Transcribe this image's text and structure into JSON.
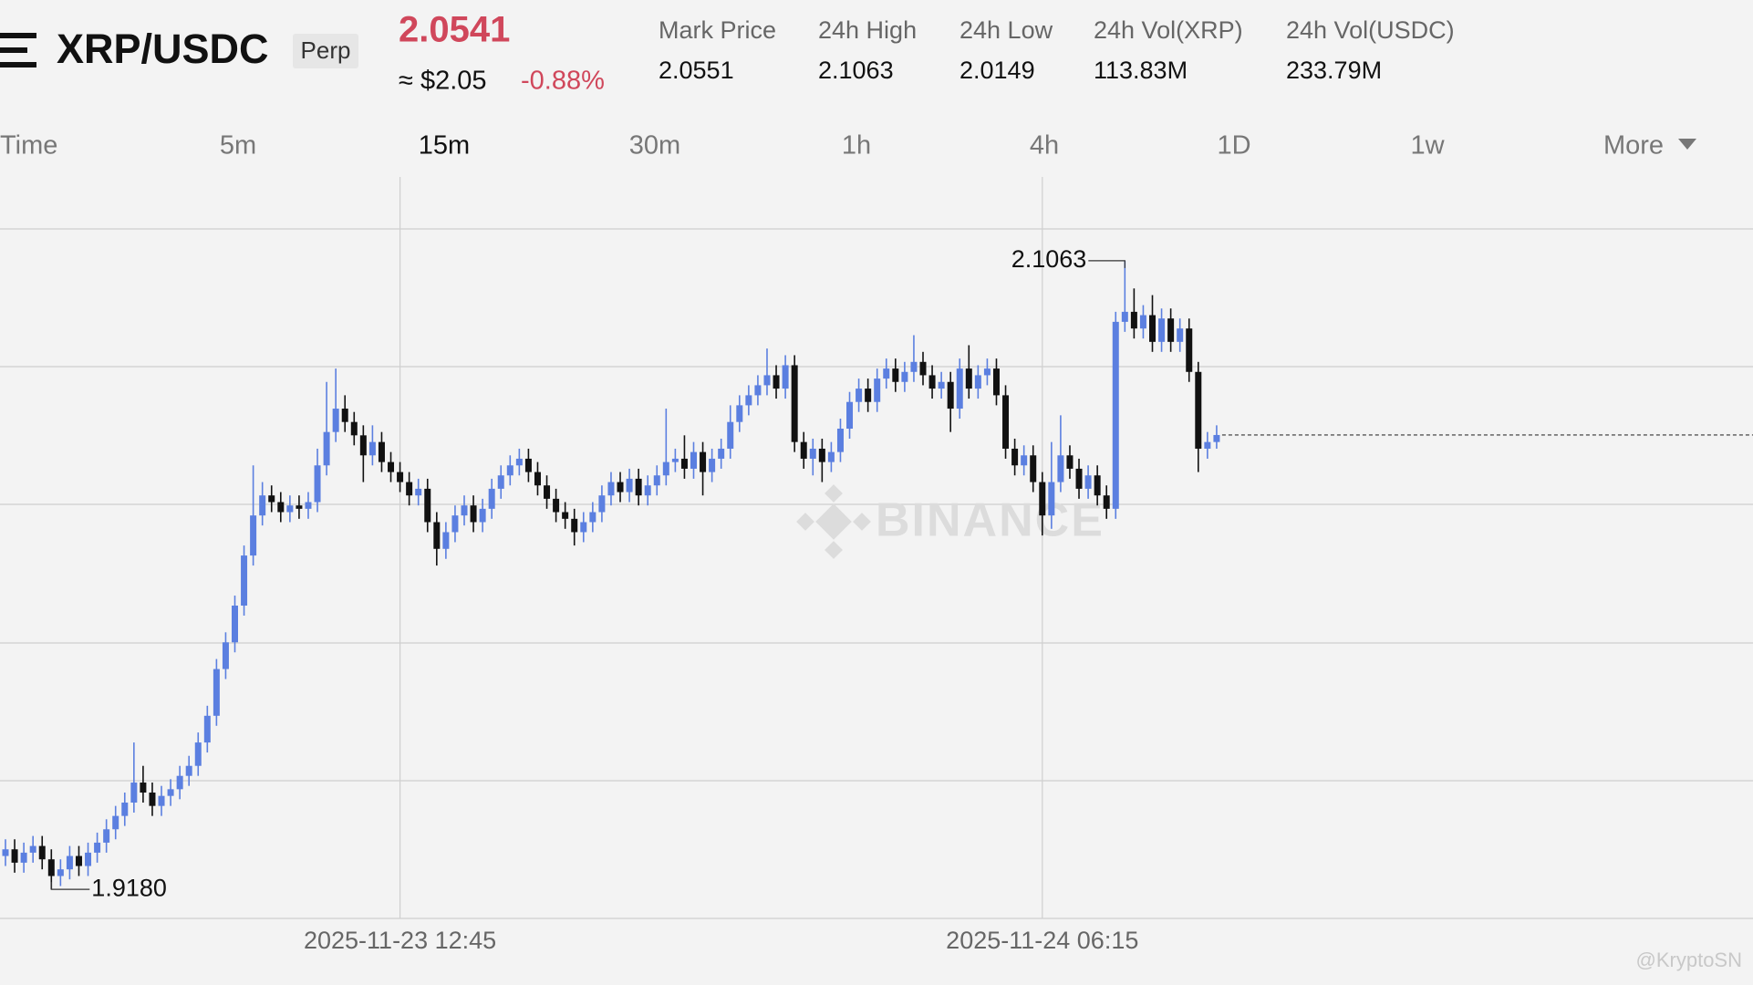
{
  "header": {
    "symbol": "XRP/USDC",
    "badge": "Perp",
    "last_price": "2.0541",
    "usd_price": "≈ $2.05",
    "change": "-0.88%",
    "stats": [
      {
        "label": "Mark Price",
        "value": "2.0551"
      },
      {
        "label": "24h High",
        "value": "2.1063"
      },
      {
        "label": "24h Low",
        "value": "2.0149"
      },
      {
        "label": "24h Vol(XRP)",
        "value": "113.83M"
      },
      {
        "label": "24h Vol(USDC)",
        "value": "233.79M"
      }
    ]
  },
  "timeframes": [
    "Time",
    "5m",
    "15m",
    "30m",
    "1h",
    "4h",
    "1D",
    "1w",
    "More"
  ],
  "selected_timeframe": 2,
  "watermarks": [
    "BINANCE",
    "@KryptoSN"
  ],
  "chart_data": {
    "type": "candlestick",
    "up_color": "#5b7fe0",
    "down_color": "#111111",
    "categories": [
      null,
      null,
      null,
      null,
      null,
      null,
      null,
      null,
      null,
      null,
      null,
      null,
      null,
      null,
      null,
      null,
      null,
      null,
      null,
      null,
      null,
      null,
      null,
      null,
      null,
      null,
      null,
      null,
      null,
      null,
      null,
      null,
      null,
      null,
      null,
      null,
      null,
      null,
      null,
      null,
      null,
      null,
      null,
      "2025-11-23 12:45",
      null,
      null,
      null,
      null,
      null,
      null,
      null,
      null,
      null,
      null,
      null,
      null,
      null,
      null,
      null,
      null,
      null,
      null,
      null,
      null,
      null,
      null,
      null,
      null,
      null,
      null,
      null,
      null,
      null,
      null,
      null,
      null,
      null,
      null,
      null,
      null,
      null,
      null,
      null,
      null,
      null,
      null,
      null,
      null,
      null,
      null,
      null,
      null,
      null,
      null,
      null,
      null,
      null,
      null,
      null,
      null,
      null,
      null,
      null,
      null,
      null,
      null,
      null,
      null,
      null,
      null,
      null,
      null,
      null,
      "2025-11-24 06:15",
      null,
      null,
      null,
      null,
      null,
      null,
      null,
      null,
      null,
      null,
      null,
      null,
      null,
      null,
      null,
      null,
      null,
      null,
      null
    ],
    "open": [
      1.928,
      1.93,
      1.926,
      1.929,
      1.931,
      1.927,
      1.922,
      1.924,
      1.928,
      1.925,
      1.929,
      1.932,
      1.936,
      1.94,
      1.944,
      1.95,
      1.947,
      1.943,
      1.946,
      1.948,
      1.952,
      1.955,
      1.962,
      1.97,
      1.984,
      1.992,
      2.003,
      2.018,
      2.03,
      2.036,
      2.034,
      2.031,
      2.033,
      2.032,
      2.034,
      2.045,
      2.055,
      2.062,
      2.058,
      2.054,
      2.048,
      2.052,
      2.046,
      2.043,
      2.04,
      2.036,
      2.038,
      2.028,
      2.02,
      2.025,
      2.03,
      2.033,
      2.028,
      2.032,
      2.038,
      2.042,
      2.045,
      2.047,
      2.043,
      2.039,
      2.035,
      2.031,
      2.029,
      2.025,
      2.028,
      2.031,
      2.036,
      2.04,
      2.037,
      2.041,
      2.036,
      2.039,
      2.042,
      2.046,
      2.047,
      2.044,
      2.049,
      2.043,
      2.047,
      2.05,
      2.058,
      2.063,
      2.066,
      2.069,
      2.072,
      2.068,
      2.075,
      2.052,
      2.047,
      2.05,
      2.046,
      2.049,
      2.056,
      2.064,
      2.068,
      2.064,
      2.071,
      2.074,
      2.07,
      2.073,
      2.076,
      2.072,
      2.068,
      2.07,
      2.062,
      2.074,
      2.068,
      2.072,
      2.074,
      2.066,
      2.05,
      2.045,
      2.048,
      2.04,
      2.03,
      2.04,
      2.048,
      2.044,
      2.038,
      2.042,
      2.036,
      2.032,
      2.088,
      2.091,
      2.086,
      2.09,
      2.082,
      2.089,
      2.082,
      2.086,
      2.073,
      2.05,
      2.052
    ],
    "high": [
      1.933,
      1.933,
      1.932,
      1.934,
      1.934,
      1.93,
      1.927,
      1.931,
      1.931,
      1.932,
      1.935,
      1.939,
      1.943,
      1.947,
      1.962,
      1.955,
      1.95,
      1.949,
      1.951,
      1.955,
      1.958,
      1.965,
      1.973,
      1.987,
      1.995,
      2.006,
      2.021,
      2.045,
      2.04,
      2.039,
      2.037,
      2.036,
      2.036,
      2.037,
      2.05,
      2.07,
      2.074,
      2.066,
      2.061,
      2.057,
      2.057,
      2.055,
      2.049,
      2.046,
      2.043,
      2.041,
      2.041,
      2.031,
      2.028,
      2.033,
      2.036,
      2.036,
      2.035,
      2.041,
      2.045,
      2.048,
      2.05,
      2.05,
      2.046,
      2.042,
      2.038,
      2.034,
      2.032,
      2.031,
      2.034,
      2.039,
      2.043,
      2.043,
      2.044,
      2.044,
      2.042,
      2.045,
      2.062,
      2.05,
      2.054,
      2.052,
      2.052,
      2.05,
      2.053,
      2.063,
      2.066,
      2.069,
      2.072,
      2.08,
      2.075,
      2.078,
      2.078,
      2.055,
      2.053,
      2.053,
      2.052,
      2.059,
      2.067,
      2.071,
      2.071,
      2.074,
      2.077,
      2.077,
      2.076,
      2.084,
      2.079,
      2.075,
      2.073,
      2.073,
      2.077,
      2.081,
      2.075,
      2.077,
      2.077,
      2.069,
      2.053,
      2.051,
      2.051,
      2.043,
      2.052,
      2.06,
      2.051,
      2.047,
      2.045,
      2.045,
      2.039,
      2.091,
      2.1063,
      2.098,
      2.093,
      2.096,
      2.092,
      2.092,
      2.089,
      2.089,
      2.076,
      2.055,
      2.057
    ],
    "low": [
      1.925,
      1.923,
      1.923,
      1.926,
      1.924,
      1.918,
      1.919,
      1.921,
      1.922,
      1.922,
      1.926,
      1.929,
      1.933,
      1.937,
      1.941,
      1.944,
      1.94,
      1.94,
      1.943,
      1.945,
      1.949,
      1.952,
      1.959,
      1.967,
      1.981,
      1.989,
      2.0,
      2.015,
      2.027,
      2.031,
      2.028,
      2.028,
      2.029,
      2.029,
      2.031,
      2.042,
      2.052,
      2.055,
      2.051,
      2.04,
      2.045,
      2.043,
      2.04,
      2.037,
      2.033,
      2.033,
      2.025,
      2.015,
      2.017,
      2.022,
      2.027,
      2.025,
      2.025,
      2.029,
      2.035,
      2.039,
      2.042,
      2.04,
      2.036,
      2.032,
      2.028,
      2.026,
      2.021,
      2.022,
      2.025,
      2.028,
      2.033,
      2.034,
      2.034,
      2.033,
      2.033,
      2.036,
      2.039,
      2.043,
      2.041,
      2.041,
      2.036,
      2.04,
      2.044,
      2.047,
      2.055,
      2.06,
      2.063,
      2.066,
      2.065,
      2.065,
      2.049,
      2.044,
      2.042,
      2.04,
      2.043,
      2.046,
      2.053,
      2.061,
      2.061,
      2.061,
      2.068,
      2.067,
      2.067,
      2.07,
      2.069,
      2.065,
      2.065,
      2.055,
      2.059,
      2.065,
      2.065,
      2.069,
      2.063,
      2.047,
      2.042,
      2.042,
      2.037,
      2.024,
      2.026,
      2.037,
      2.041,
      2.035,
      2.035,
      2.033,
      2.029,
      2.029,
      2.085,
      2.083,
      2.083,
      2.079,
      2.079,
      2.079,
      2.079,
      2.07,
      2.043,
      2.047,
      2.05
    ],
    "close": [
      1.93,
      1.926,
      1.929,
      1.931,
      1.927,
      1.922,
      1.924,
      1.928,
      1.925,
      1.929,
      1.932,
      1.936,
      1.94,
      1.944,
      1.95,
      1.947,
      1.943,
      1.946,
      1.948,
      1.952,
      1.955,
      1.962,
      1.97,
      1.984,
      1.992,
      2.003,
      2.018,
      2.03,
      2.036,
      2.034,
      2.031,
      2.033,
      2.032,
      2.034,
      2.045,
      2.055,
      2.062,
      2.058,
      2.054,
      2.048,
      2.052,
      2.046,
      2.043,
      2.04,
      2.036,
      2.038,
      2.028,
      2.02,
      2.025,
      2.03,
      2.033,
      2.028,
      2.032,
      2.038,
      2.042,
      2.045,
      2.047,
      2.043,
      2.039,
      2.035,
      2.031,
      2.029,
      2.025,
      2.028,
      2.031,
      2.036,
      2.04,
      2.037,
      2.041,
      2.036,
      2.039,
      2.042,
      2.046,
      2.047,
      2.044,
      2.049,
      2.043,
      2.047,
      2.05,
      2.058,
      2.063,
      2.066,
      2.069,
      2.072,
      2.068,
      2.075,
      2.052,
      2.047,
      2.05,
      2.046,
      2.049,
      2.056,
      2.064,
      2.068,
      2.064,
      2.071,
      2.074,
      2.07,
      2.073,
      2.076,
      2.072,
      2.068,
      2.07,
      2.062,
      2.074,
      2.068,
      2.072,
      2.074,
      2.066,
      2.05,
      2.045,
      2.048,
      2.04,
      2.03,
      2.04,
      2.048,
      2.044,
      2.038,
      2.042,
      2.036,
      2.032,
      2.088,
      2.091,
      2.086,
      2.09,
      2.082,
      2.089,
      2.082,
      2.086,
      2.073,
      2.05,
      2.052,
      2.0541
    ],
    "annotations": [
      {
        "value": 2.1063,
        "label": "2.1063"
      },
      {
        "value": 1.918,
        "label": "1.9180"
      }
    ],
    "ylim": [
      1.9093,
      2.1314
    ]
  }
}
